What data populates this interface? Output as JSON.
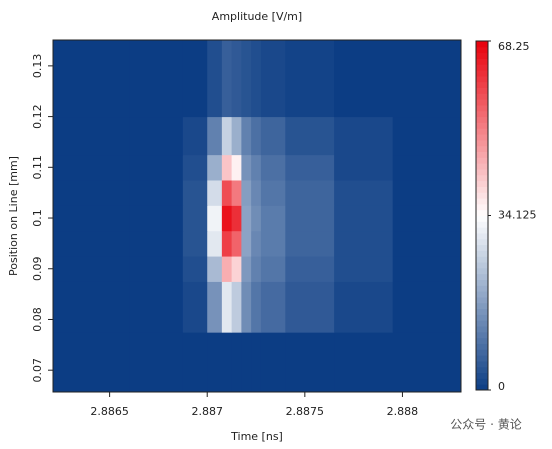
{
  "chart_data": {
    "type": "heatmap",
    "title": "Amplitude [V/m]",
    "xlabel": "Time [ns]",
    "ylabel": "Position on Line [mm]",
    "watermark": "公众号 · 黄论",
    "x": [
      2.8864,
      2.8868,
      2.88695,
      2.88705,
      2.8871,
      2.88715,
      2.8872,
      2.88725,
      2.8873,
      2.8875,
      2.8878,
      2.8881
    ],
    "y": [
      0.07,
      0.085,
      0.09,
      0.095,
      0.1,
      0.105,
      0.11,
      0.115,
      0.125
    ],
    "z": [
      [
        0,
        0,
        0,
        0,
        0,
        0,
        0,
        0,
        0,
        0,
        0,
        0
      ],
      [
        0,
        0,
        2,
        15,
        30,
        25,
        14,
        10,
        8,
        5,
        2,
        0
      ],
      [
        0,
        0,
        3,
        22,
        45,
        40,
        16,
        12,
        10,
        6,
        3,
        0
      ],
      [
        0,
        0,
        4,
        30,
        60,
        55,
        18,
        13,
        11,
        7,
        3,
        0
      ],
      [
        0,
        0,
        4,
        32,
        66,
        62,
        18,
        14,
        11,
        7,
        3,
        0
      ],
      [
        0,
        0,
        4,
        28,
        58,
        52,
        17,
        13,
        10,
        7,
        3,
        0
      ],
      [
        0,
        0,
        3,
        20,
        42,
        36,
        15,
        12,
        9,
        6,
        2,
        0
      ],
      [
        0,
        0,
        2,
        12,
        26,
        20,
        12,
        9,
        7,
        4,
        2,
        0
      ],
      [
        0,
        0,
        0,
        3,
        6,
        5,
        4,
        3,
        2,
        1,
        0,
        0
      ]
    ],
    "xlim": [
      2.88621,
      2.8883
    ],
    "ylim": [
      0.0657,
      0.1351
    ],
    "xticks": [
      2.8865,
      2.887,
      2.8875,
      2.888
    ],
    "yticks": [
      0.07,
      0.08,
      0.09,
      0.1,
      0.11,
      0.12,
      0.13
    ],
    "zlim": [
      0,
      68.25
    ],
    "zticks": [
      0,
      34.125,
      68.25
    ],
    "colormap": [
      "#0c3d84",
      "#ffffff",
      "#e8000b"
    ]
  }
}
